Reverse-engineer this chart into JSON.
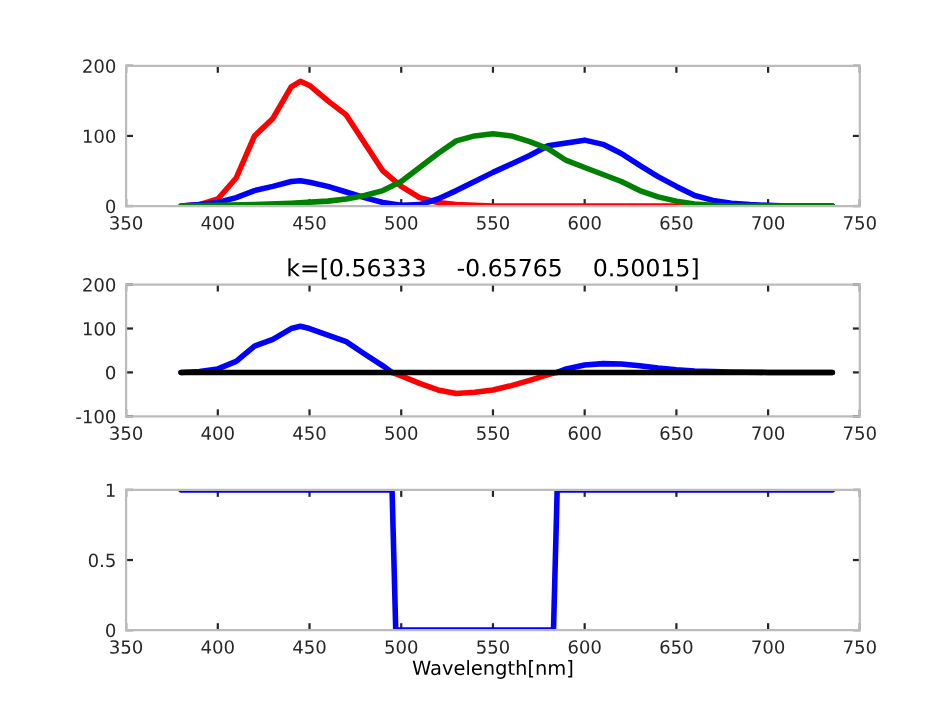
{
  "chart_data": [
    {
      "type": "line",
      "xlim": [
        350,
        750
      ],
      "xticks": [
        350,
        400,
        450,
        500,
        550,
        600,
        650,
        700,
        750
      ],
      "ylim": [
        0,
        200
      ],
      "yticks": [
        0,
        100,
        200
      ],
      "series": [
        {
          "color": "#ff0000",
          "x": [
            380,
            390,
            400,
            410,
            420,
            430,
            440,
            445,
            450,
            460,
            470,
            480,
            490,
            500,
            510,
            520,
            530,
            540,
            550,
            600,
            650,
            700,
            735
          ],
          "values": [
            0,
            2,
            10,
            40,
            100,
            125,
            170,
            178,
            172,
            150,
            130,
            90,
            50,
            28,
            12,
            5,
            2,
            1,
            0,
            0,
            0,
            0,
            0
          ]
        },
        {
          "color": "#0000ff",
          "x": [
            380,
            390,
            400,
            410,
            420,
            430,
            440,
            445,
            450,
            460,
            470,
            480,
            490,
            500,
            510,
            520,
            530,
            540,
            550,
            560,
            570,
            580,
            590,
            600,
            610,
            620,
            630,
            640,
            650,
            660,
            670,
            680,
            690,
            700,
            710,
            735
          ],
          "values": [
            0,
            2,
            5,
            12,
            22,
            28,
            35,
            36,
            34,
            28,
            20,
            12,
            5,
            1,
            2,
            10,
            22,
            35,
            48,
            60,
            72,
            86,
            90,
            94,
            88,
            75,
            58,
            42,
            28,
            15,
            8,
            4,
            2,
            1,
            0,
            0
          ]
        },
        {
          "color": "#008000",
          "x": [
            380,
            400,
            420,
            440,
            460,
            470,
            480,
            490,
            500,
            510,
            520,
            530,
            540,
            550,
            560,
            570,
            580,
            590,
            600,
            610,
            620,
            630,
            640,
            650,
            660,
            670,
            680,
            735
          ],
          "values": [
            0,
            1,
            2,
            4,
            7,
            10,
            15,
            22,
            35,
            55,
            75,
            93,
            100,
            103,
            100,
            92,
            82,
            65,
            55,
            45,
            35,
            22,
            13,
            7,
            3,
            1,
            0,
            0
          ]
        }
      ]
    },
    {
      "type": "line",
      "title": "k=[0.56333    -0.65765    0.50015]",
      "xlim": [
        350,
        750
      ],
      "xticks": [
        350,
        400,
        450,
        500,
        550,
        600,
        650,
        700,
        750
      ],
      "ylim": [
        -100,
        200
      ],
      "yticks": [
        -100,
        0,
        100,
        200
      ],
      "series": [
        {
          "color": "#0000ff",
          "x": [
            380,
            390,
            400,
            410,
            420,
            430,
            440,
            445,
            450,
            460,
            470,
            480,
            490,
            495
          ],
          "values": [
            0,
            2,
            8,
            25,
            60,
            75,
            100,
            105,
            100,
            85,
            70,
            42,
            15,
            0
          ]
        },
        {
          "color": "#ff0000",
          "x": [
            495,
            500,
            510,
            520,
            530,
            540,
            550,
            560,
            570,
            580,
            585
          ],
          "values": [
            0,
            -8,
            -25,
            -40,
            -48,
            -45,
            -40,
            -30,
            -18,
            -5,
            0
          ]
        },
        {
          "color": "#0000ff",
          "x": [
            585,
            590,
            600,
            610,
            620,
            630,
            640,
            650,
            660,
            680,
            700,
            735
          ],
          "values": [
            0,
            8,
            17,
            20,
            19,
            15,
            10,
            6,
            3,
            1,
            0,
            0
          ]
        },
        {
          "color": "#000000",
          "x": [
            380,
            735
          ],
          "values": [
            0,
            0
          ]
        }
      ]
    },
    {
      "type": "line",
      "xlabel": "Wavelength[nm]",
      "xlim": [
        350,
        750
      ],
      "xticks": [
        350,
        400,
        450,
        500,
        550,
        600,
        650,
        700,
        750
      ],
      "ylim": [
        0,
        1
      ],
      "yticks": [
        0,
        0.5,
        1
      ],
      "series": [
        {
          "color": "#0000ff",
          "x": [
            380,
            495,
            497,
            583,
            585,
            735
          ],
          "values": [
            1,
            1,
            0,
            0,
            1,
            1
          ]
        }
      ]
    }
  ]
}
